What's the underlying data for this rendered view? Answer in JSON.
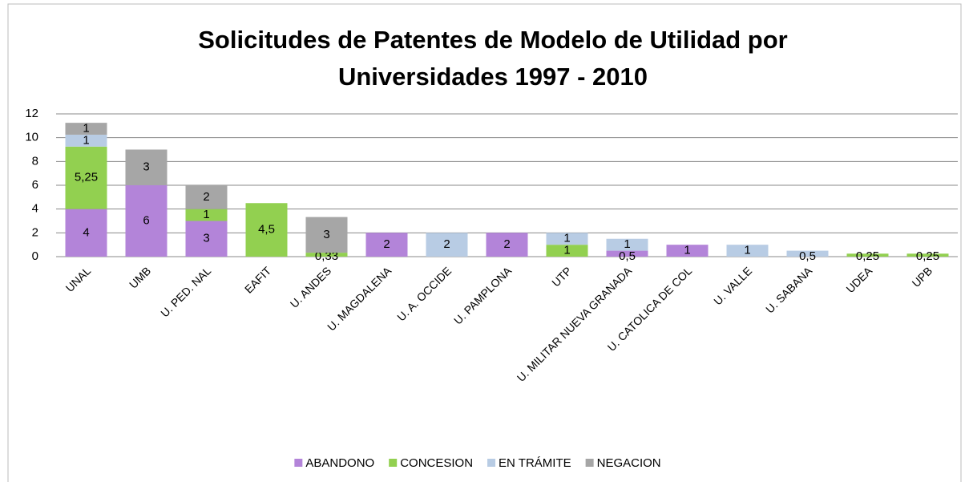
{
  "chart_data": {
    "type": "stacked_bar",
    "title": [
      "Solicitudes de Patentes de Modelo de Utilidad por",
      "Universidades 1997 - 2010"
    ],
    "categories": [
      "UNAL",
      "UMB",
      "U. PED. NAL",
      "EAFIT",
      "U. ANDES",
      "U. MAGDALENA",
      "U. A.  OCCIDE",
      "U. PAMPLONA",
      "UTP",
      "U. MILITAR NUEVA  GRANADA",
      "U. CATOLICA DE COL",
      "U. VALLE",
      "U. SABANA",
      "UDEA",
      "UPB"
    ],
    "series": [
      {
        "name": "ABANDONO",
        "color": "#b384d9",
        "values": [
          4,
          6,
          3,
          null,
          null,
          2,
          null,
          2,
          null,
          0.5,
          1,
          null,
          null,
          null,
          null
        ],
        "value_labels": [
          "4",
          "6",
          "3",
          null,
          null,
          "2",
          null,
          "2",
          null,
          "0,5",
          "1",
          null,
          null,
          null,
          null
        ]
      },
      {
        "name": "CONCESION",
        "color": "#92d050",
        "values": [
          5.25,
          null,
          1,
          4.5,
          0.33,
          null,
          null,
          null,
          1,
          null,
          null,
          null,
          null,
          0.25,
          0.25
        ],
        "value_labels": [
          "5,25",
          null,
          "1",
          "4,5",
          "0,33",
          null,
          null,
          null,
          "1",
          null,
          null,
          null,
          null,
          "0,25",
          "0,25"
        ]
      },
      {
        "name": "EN TRÁMITE",
        "color": "#b8cce4",
        "values": [
          1,
          null,
          null,
          null,
          null,
          null,
          2,
          null,
          1,
          1,
          null,
          1,
          0.5,
          null,
          null
        ],
        "value_labels": [
          "1",
          null,
          null,
          null,
          null,
          null,
          "2",
          null,
          "1",
          "1",
          null,
          "1",
          "0,5",
          null,
          null
        ]
      },
      {
        "name": "NEGACION",
        "color": "#a6a6a6",
        "values": [
          1,
          3,
          2,
          null,
          3,
          null,
          null,
          null,
          null,
          null,
          null,
          null,
          null,
          null,
          null
        ],
        "value_labels": [
          "1",
          "3",
          "2",
          null,
          "3",
          null,
          null,
          null,
          null,
          null,
          null,
          null,
          null,
          null,
          null
        ]
      }
    ],
    "ylim": [
      0,
      12
    ],
    "yticks": [
      0,
      2,
      4,
      6,
      8,
      10,
      12
    ],
    "grid": true,
    "legend": "bottom"
  }
}
